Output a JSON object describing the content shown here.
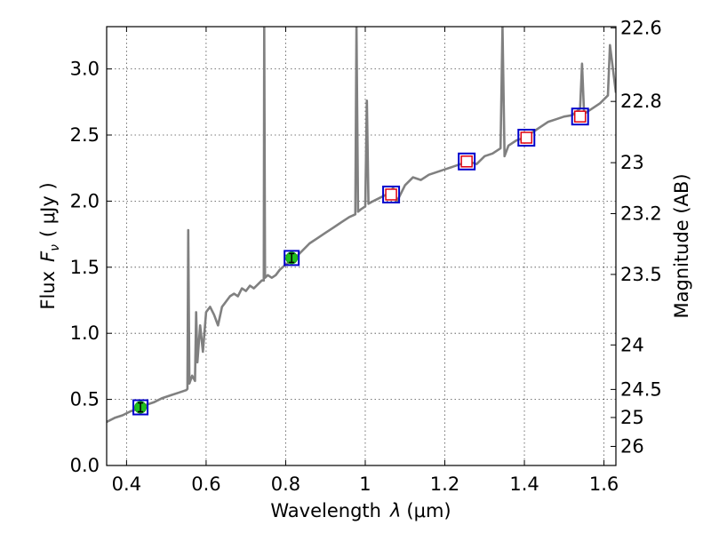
{
  "chart_data": {
    "type": "line",
    "xlabel": "Wavelength",
    "xlabel_symbol": "λ",
    "xlabel_unit": "(μm)",
    "ylabel": "Flux",
    "ylabel_symbol": "F",
    "ylabel_subscript": "ν",
    "ylabel_unit": "( μJy )",
    "y2label": "Magnitude (AB)",
    "xlim": [
      0.35,
      1.63
    ],
    "ylim": [
      0.0,
      3.32
    ],
    "grid": true,
    "x_ticks": [
      0.4,
      0.6,
      0.8,
      1.0,
      1.2,
      1.4,
      1.6
    ],
    "x_tick_labels": [
      "0.4",
      "0.6",
      "0.8",
      "1",
      "1.2",
      "1.4",
      "1.6"
    ],
    "y_ticks": [
      0.0,
      0.5,
      1.0,
      1.5,
      2.0,
      2.5,
      3.0
    ],
    "y_tick_labels": [
      "0.0",
      "0.5",
      "1.0",
      "1.5",
      "2.0",
      "2.5",
      "3.0"
    ],
    "y2_ticks": [
      22.6,
      22.8,
      23,
      23.2,
      23.5,
      24,
      24.5,
      25,
      26
    ],
    "y2_tick_labels": [
      "22.6",
      "22.8",
      "23",
      "23.2",
      "23.5",
      "24",
      "24.5",
      "25",
      "26"
    ],
    "line_color": "#808080",
    "series": [
      {
        "style": "line",
        "color": "#808080",
        "points": [
          [
            0.35,
            0.33
          ],
          [
            0.37,
            0.36
          ],
          [
            0.39,
            0.38
          ],
          [
            0.41,
            0.41
          ],
          [
            0.43,
            0.43
          ],
          [
            0.45,
            0.46
          ],
          [
            0.47,
            0.48
          ],
          [
            0.49,
            0.51
          ],
          [
            0.51,
            0.53
          ],
          [
            0.53,
            0.55
          ],
          [
            0.55,
            0.57
          ],
          [
            0.553,
            0.58
          ],
          [
            0.555,
            1.78
          ],
          [
            0.558,
            0.62
          ],
          [
            0.565,
            0.68
          ],
          [
            0.572,
            0.64
          ],
          [
            0.575,
            1.16
          ],
          [
            0.578,
            0.78
          ],
          [
            0.585,
            1.06
          ],
          [
            0.592,
            0.86
          ],
          [
            0.6,
            1.16
          ],
          [
            0.61,
            1.2
          ],
          [
            0.62,
            1.14
          ],
          [
            0.63,
            1.06
          ],
          [
            0.64,
            1.2
          ],
          [
            0.65,
            1.24
          ],
          [
            0.66,
            1.28
          ],
          [
            0.67,
            1.3
          ],
          [
            0.68,
            1.28
          ],
          [
            0.69,
            1.34
          ],
          [
            0.7,
            1.32
          ],
          [
            0.71,
            1.36
          ],
          [
            0.72,
            1.34
          ],
          [
            0.73,
            1.37
          ],
          [
            0.74,
            1.4
          ],
          [
            0.745,
            1.4
          ],
          [
            0.746,
            3.32
          ],
          [
            0.748,
            1.42
          ],
          [
            0.755,
            1.44
          ],
          [
            0.765,
            1.42
          ],
          [
            0.775,
            1.44
          ],
          [
            0.785,
            1.48
          ],
          [
            0.8,
            1.52
          ],
          [
            0.82,
            1.56
          ],
          [
            0.84,
            1.62
          ],
          [
            0.86,
            1.68
          ],
          [
            0.88,
            1.72
          ],
          [
            0.9,
            1.76
          ],
          [
            0.92,
            1.8
          ],
          [
            0.94,
            1.84
          ],
          [
            0.96,
            1.88
          ],
          [
            0.975,
            1.9
          ],
          [
            0.978,
            3.32
          ],
          [
            0.982,
            1.92
          ],
          [
            0.99,
            1.94
          ],
          [
            1.0,
            1.96
          ],
          [
            1.004,
            2.76
          ],
          [
            1.008,
            1.98
          ],
          [
            1.02,
            2.0
          ],
          [
            1.04,
            2.03
          ],
          [
            1.06,
            2.06
          ],
          [
            1.07,
            2.1
          ],
          [
            1.08,
            2.0
          ],
          [
            1.1,
            2.12
          ],
          [
            1.12,
            2.18
          ],
          [
            1.14,
            2.16
          ],
          [
            1.16,
            2.2
          ],
          [
            1.18,
            2.22
          ],
          [
            1.2,
            2.24
          ],
          [
            1.22,
            2.26
          ],
          [
            1.24,
            2.28
          ],
          [
            1.26,
            2.3
          ],
          [
            1.28,
            2.28
          ],
          [
            1.3,
            2.34
          ],
          [
            1.32,
            2.36
          ],
          [
            1.34,
            2.4
          ],
          [
            1.345,
            3.32
          ],
          [
            1.35,
            2.34
          ],
          [
            1.36,
            2.42
          ],
          [
            1.38,
            2.46
          ],
          [
            1.4,
            2.48
          ],
          [
            1.42,
            2.52
          ],
          [
            1.44,
            2.56
          ],
          [
            1.46,
            2.6
          ],
          [
            1.48,
            2.62
          ],
          [
            1.5,
            2.64
          ],
          [
            1.52,
            2.65
          ],
          [
            1.54,
            2.7
          ],
          [
            1.545,
            3.04
          ],
          [
            1.55,
            2.66
          ],
          [
            1.57,
            2.7
          ],
          [
            1.59,
            2.74
          ],
          [
            1.61,
            2.8
          ],
          [
            1.615,
            3.18
          ],
          [
            1.63,
            2.82
          ]
        ]
      },
      {
        "style": "markers",
        "marker": "circle",
        "fill": "#1fbf1f",
        "edge": "#0000ff",
        "frame": "#0000cc",
        "points": [
          [
            0.435,
            0.44
          ],
          [
            0.815,
            1.57
          ]
        ]
      },
      {
        "style": "markers",
        "marker": "square",
        "fill": "#ffffff",
        "edge": "#e0000f",
        "frame": "#0000cc",
        "points": [
          [
            1.065,
            2.05
          ],
          [
            1.255,
            2.3
          ],
          [
            1.405,
            2.48
          ],
          [
            1.54,
            2.64
          ]
        ]
      }
    ]
  }
}
